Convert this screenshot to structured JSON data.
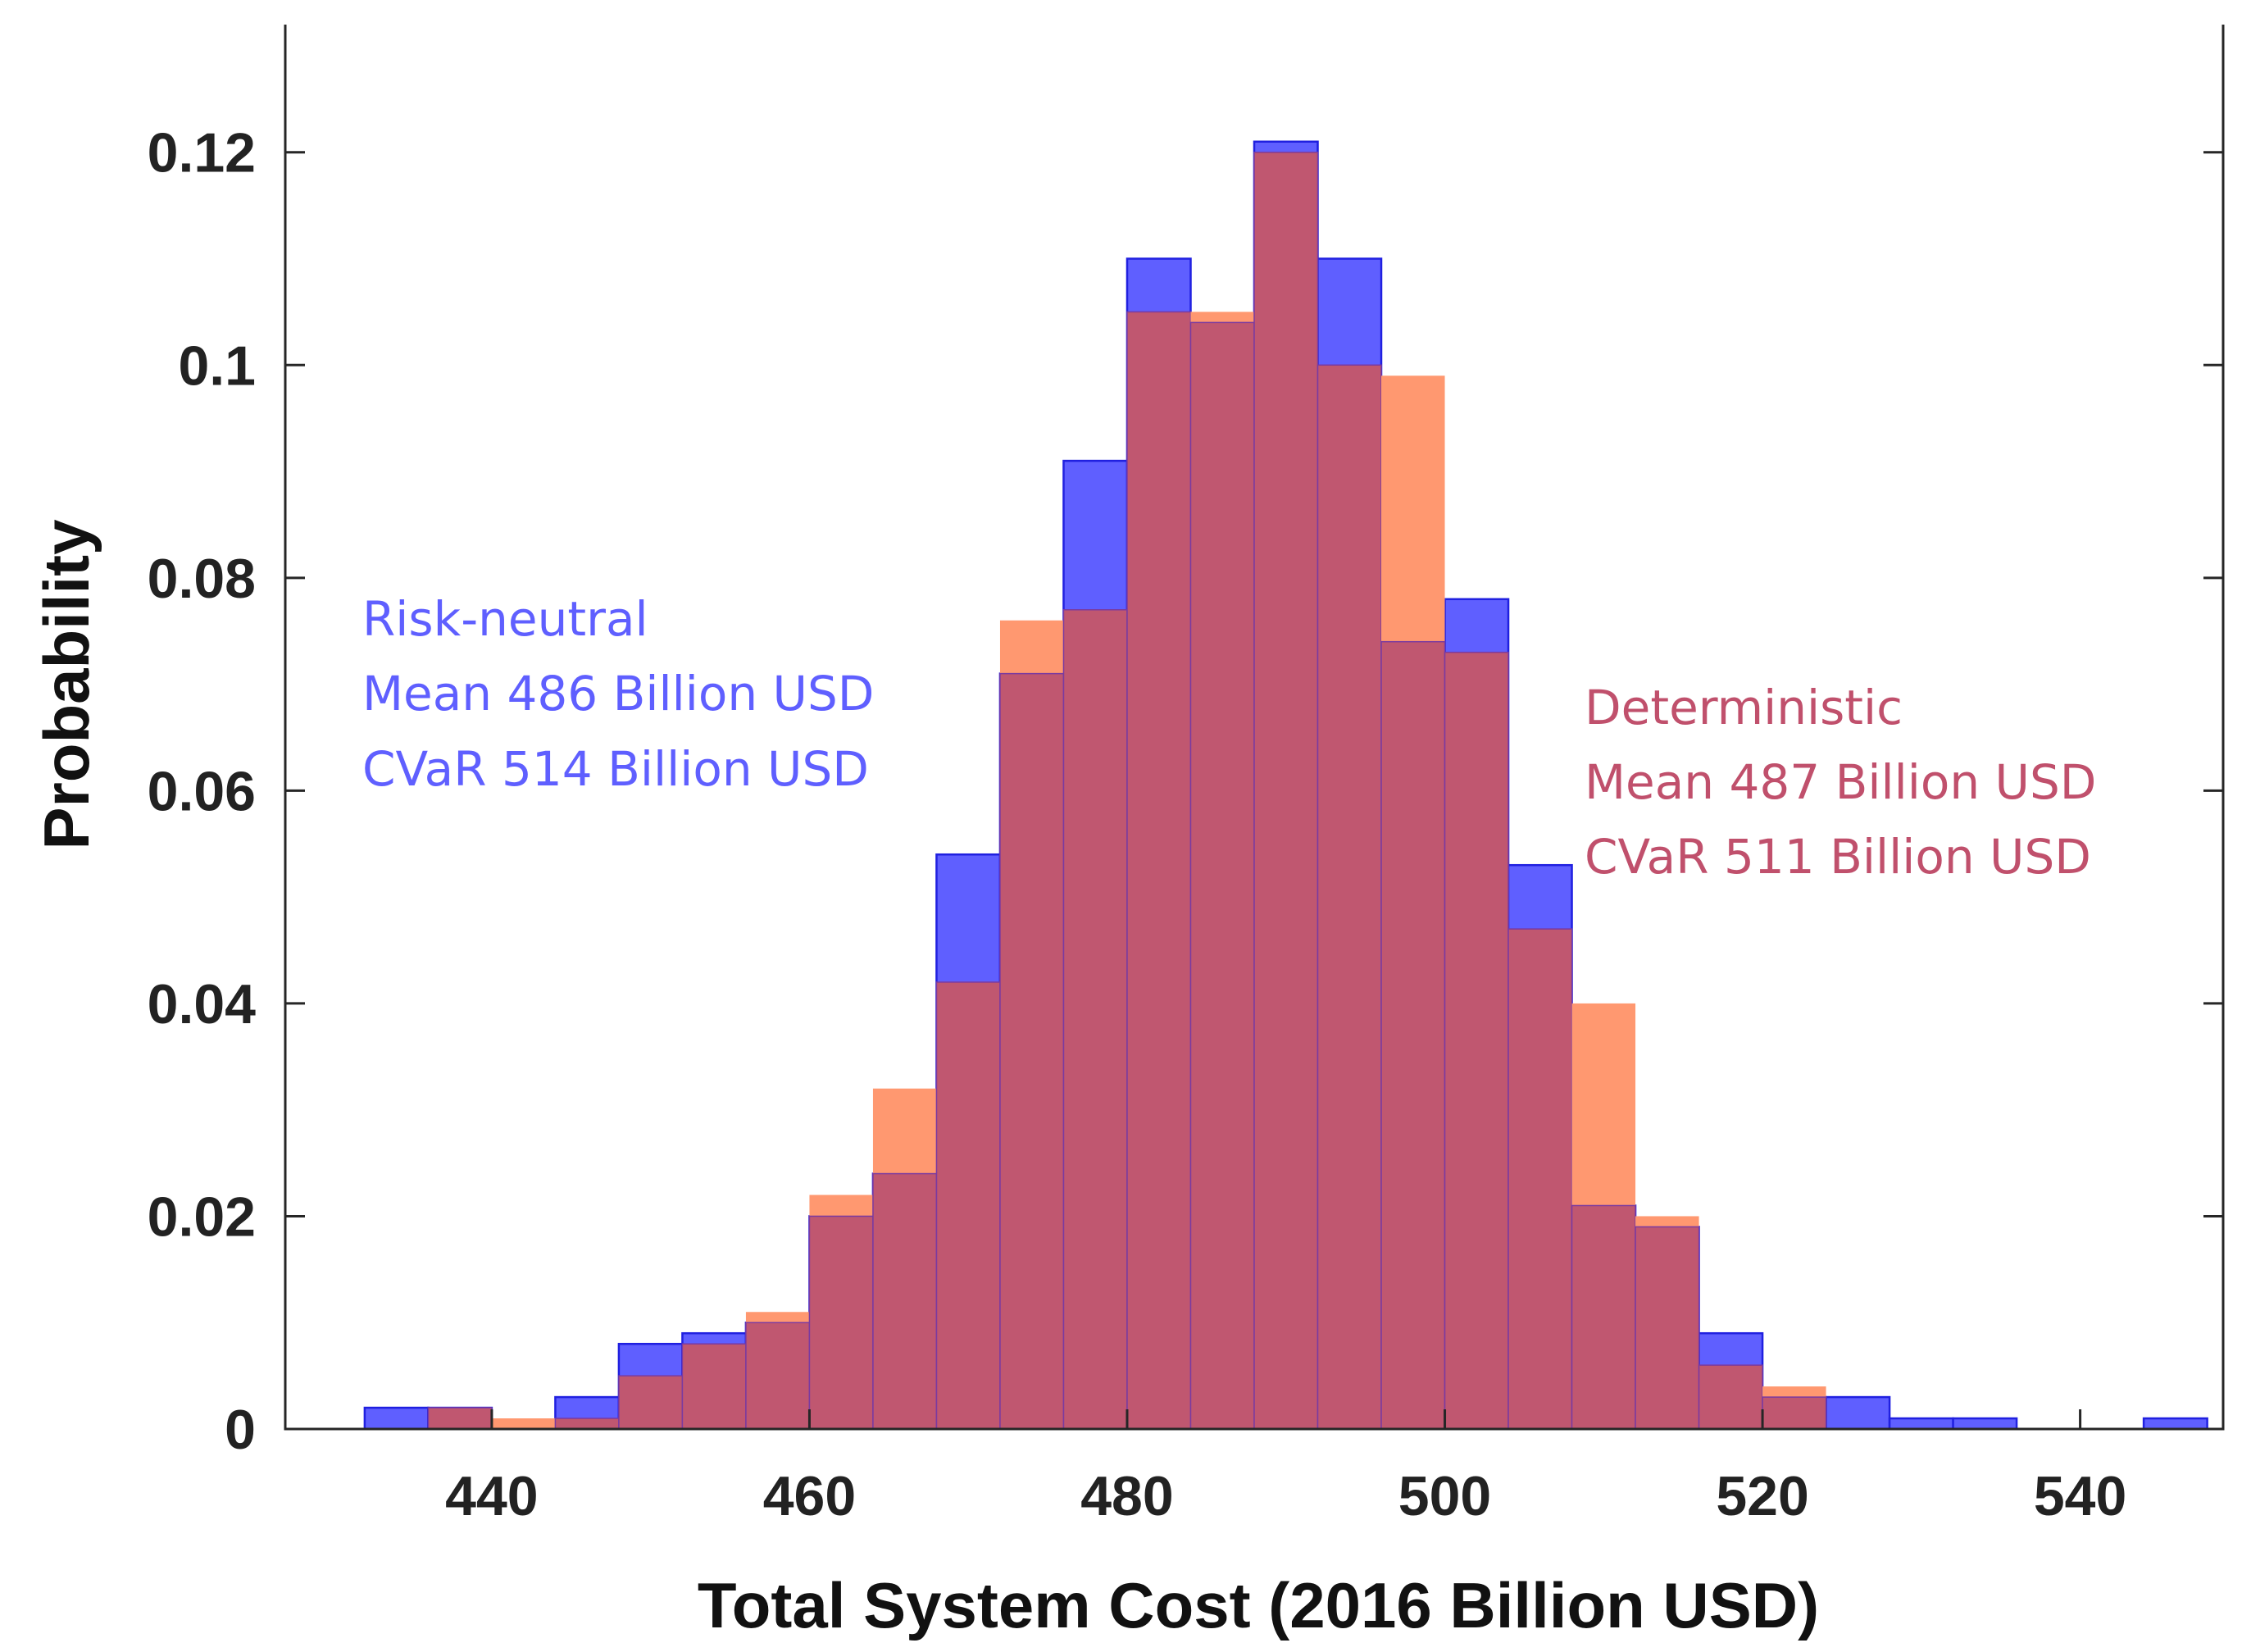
{
  "chart_data": {
    "type": "bar",
    "title": "",
    "xlabel": "Total System Cost (2016 Billion USD)",
    "ylabel": "Probability",
    "xlim": [
      427,
      549
    ],
    "ylim": [
      0,
      0.132
    ],
    "xticks": [
      440,
      460,
      480,
      500,
      520,
      540
    ],
    "yticks": [
      0,
      0.02,
      0.04,
      0.06,
      0.08,
      0.1,
      0.12
    ],
    "ytick_labels": [
      "0",
      "0.02",
      "0.04",
      "0.06",
      "0.08",
      "0.1",
      "0.12"
    ],
    "grid": false,
    "series": [
      {
        "name": "Risk-neutral",
        "color": "#5f5fff",
        "edge_color": "#2020e0",
        "bins": [
          {
            "x0": 432,
            "x1": 436,
            "value": 0.002
          },
          {
            "x0": 436,
            "x1": 440,
            "value": 0.002
          },
          {
            "x0": 444,
            "x1": 448,
            "value": 0.003
          },
          {
            "x0": 448,
            "x1": 452,
            "value": 0.008
          },
          {
            "x0": 452,
            "x1": 456,
            "value": 0.009
          },
          {
            "x0": 456,
            "x1": 460,
            "value": 0.01
          },
          {
            "x0": 460,
            "x1": 464,
            "value": 0.02
          },
          {
            "x0": 464,
            "x1": 468,
            "value": 0.024
          },
          {
            "x0": 468,
            "x1": 472,
            "value": 0.054
          },
          {
            "x0": 472,
            "x1": 476,
            "value": 0.071
          },
          {
            "x0": 476,
            "x1": 480,
            "value": 0.091
          },
          {
            "x0": 480,
            "x1": 484,
            "value": 0.11
          },
          {
            "x0": 484,
            "x1": 488,
            "value": 0.104
          },
          {
            "x0": 488,
            "x1": 492,
            "value": 0.121
          },
          {
            "x0": 492,
            "x1": 496,
            "value": 0.11
          },
          {
            "x0": 496,
            "x1": 500,
            "value": 0.074
          },
          {
            "x0": 500,
            "x1": 504,
            "value": 0.078
          },
          {
            "x0": 504,
            "x1": 508,
            "value": 0.053
          },
          {
            "x0": 508,
            "x1": 512,
            "value": 0.021
          },
          {
            "x0": 512,
            "x1": 516,
            "value": 0.019
          },
          {
            "x0": 516,
            "x1": 520,
            "value": 0.009
          },
          {
            "x0": 520,
            "x1": 524,
            "value": 0.003
          },
          {
            "x0": 524,
            "x1": 528,
            "value": 0.003
          },
          {
            "x0": 528,
            "x1": 532,
            "value": 0.001
          },
          {
            "x0": 532,
            "x1": 536,
            "value": 0.001
          },
          {
            "x0": 544,
            "x1": 548,
            "value": 0.001
          }
        ]
      },
      {
        "name": "Deterministic",
        "color": "#ff9870",
        "overlap_color": "#c05770",
        "bins": [
          {
            "x0": 436,
            "x1": 440,
            "value": 0.002
          },
          {
            "x0": 440,
            "x1": 444,
            "value": 0.001
          },
          {
            "x0": 444,
            "x1": 448,
            "value": 0.001
          },
          {
            "x0": 448,
            "x1": 452,
            "value": 0.005
          },
          {
            "x0": 452,
            "x1": 456,
            "value": 0.008
          },
          {
            "x0": 456,
            "x1": 460,
            "value": 0.011
          },
          {
            "x0": 460,
            "x1": 464,
            "value": 0.022
          },
          {
            "x0": 464,
            "x1": 468,
            "value": 0.032
          },
          {
            "x0": 468,
            "x1": 472,
            "value": 0.042
          },
          {
            "x0": 472,
            "x1": 476,
            "value": 0.076
          },
          {
            "x0": 476,
            "x1": 480,
            "value": 0.077
          },
          {
            "x0": 480,
            "x1": 484,
            "value": 0.105
          },
          {
            "x0": 484,
            "x1": 488,
            "value": 0.105
          },
          {
            "x0": 488,
            "x1": 492,
            "value": 0.12
          },
          {
            "x0": 492,
            "x1": 496,
            "value": 0.1
          },
          {
            "x0": 496,
            "x1": 500,
            "value": 0.099
          },
          {
            "x0": 500,
            "x1": 504,
            "value": 0.073
          },
          {
            "x0": 504,
            "x1": 508,
            "value": 0.047
          },
          {
            "x0": 508,
            "x1": 512,
            "value": 0.04
          },
          {
            "x0": 512,
            "x1": 516,
            "value": 0.02
          },
          {
            "x0": 516,
            "x1": 520,
            "value": 0.006
          },
          {
            "x0": 520,
            "x1": 524,
            "value": 0.004
          }
        ]
      }
    ],
    "annotations": [
      {
        "name": "risk-neutral",
        "color": "#5f5fff",
        "lines": [
          "Risk-neutral",
          "Mean 486 Billion USD",
          "CVaR 514 Billion USD"
        ]
      },
      {
        "name": "deterministic",
        "color": "#c0506c",
        "lines": [
          "Deterministic",
          "Mean 487 Billion USD",
          "CVaR 511 Billion USD"
        ]
      }
    ]
  }
}
